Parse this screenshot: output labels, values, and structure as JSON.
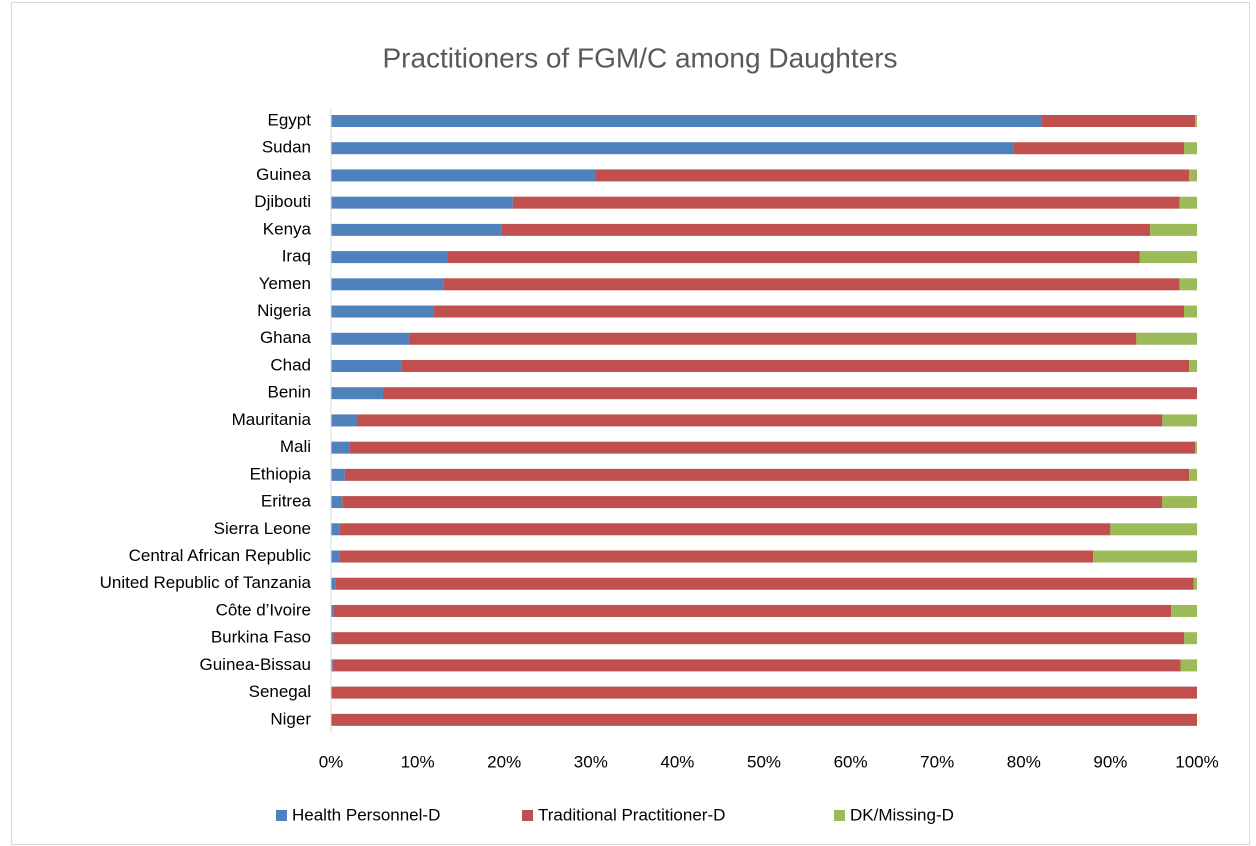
{
  "chart_data": {
    "type": "stacked-barh",
    "title": "Practitioners of FGM/C among Daughters",
    "categories": [
      "Egypt",
      "Sudan",
      "Guinea",
      "Djibouti",
      "Kenya",
      "Iraq",
      "Yemen",
      "Nigeria",
      "Ghana",
      "Chad",
      "Benin",
      "Mauritania",
      "Mali",
      "Ethiopia",
      "Eritrea",
      "Sierra Leone",
      "Central African Republic",
      "United Republic of Tanzania",
      "Côte d’Ivoire",
      "Burkina Faso",
      "Guinea-Bissau",
      "Senegal",
      "Niger"
    ],
    "series": [
      {
        "name": "Health Personnel-D",
        "color": "#4f81bd",
        "values": [
          82,
          78.8,
          30.6,
          21,
          19.7,
          13.4,
          13,
          11.9,
          9,
          8.1,
          6,
          3,
          2.1,
          1.6,
          1.3,
          1,
          1,
          0.5,
          0.3,
          0.3,
          0.2,
          0,
          0
        ]
      },
      {
        "name": "Traditional Practitioner-D",
        "color": "#c0504d",
        "values": [
          17.8,
          19.7,
          68.5,
          77,
          74.9,
          80,
          85,
          86.6,
          84,
          91,
          94,
          93,
          97.7,
          97.5,
          94.7,
          89,
          87,
          99.1,
          96.7,
          98.2,
          97.9,
          100,
          100
        ]
      },
      {
        "name": "DK/Missing-D",
        "color": "#9bbb59",
        "values": [
          0.2,
          1.5,
          0.9,
          2,
          5.4,
          6.6,
          2,
          1.5,
          7,
          0.9,
          0,
          4,
          0.2,
          0.9,
          4,
          10,
          12,
          0.4,
          3,
          1.5,
          1.9,
          0,
          0
        ]
      }
    ],
    "xlim": [
      0,
      100
    ],
    "xticks": [
      {
        "value": 0,
        "label": "0%"
      },
      {
        "value": 10,
        "label": "10%"
      },
      {
        "value": 20,
        "label": "20%"
      },
      {
        "value": 30,
        "label": "30%"
      },
      {
        "value": 40,
        "label": "40%"
      },
      {
        "value": 50,
        "label": "50%"
      },
      {
        "value": 60,
        "label": "60%"
      },
      {
        "value": 70,
        "label": "70%"
      },
      {
        "value": 80,
        "label": "80%"
      },
      {
        "value": 90,
        "label": "90%"
      },
      {
        "value": 100,
        "label": "100%"
      }
    ],
    "legend": "bottom",
    "grid": false
  }
}
